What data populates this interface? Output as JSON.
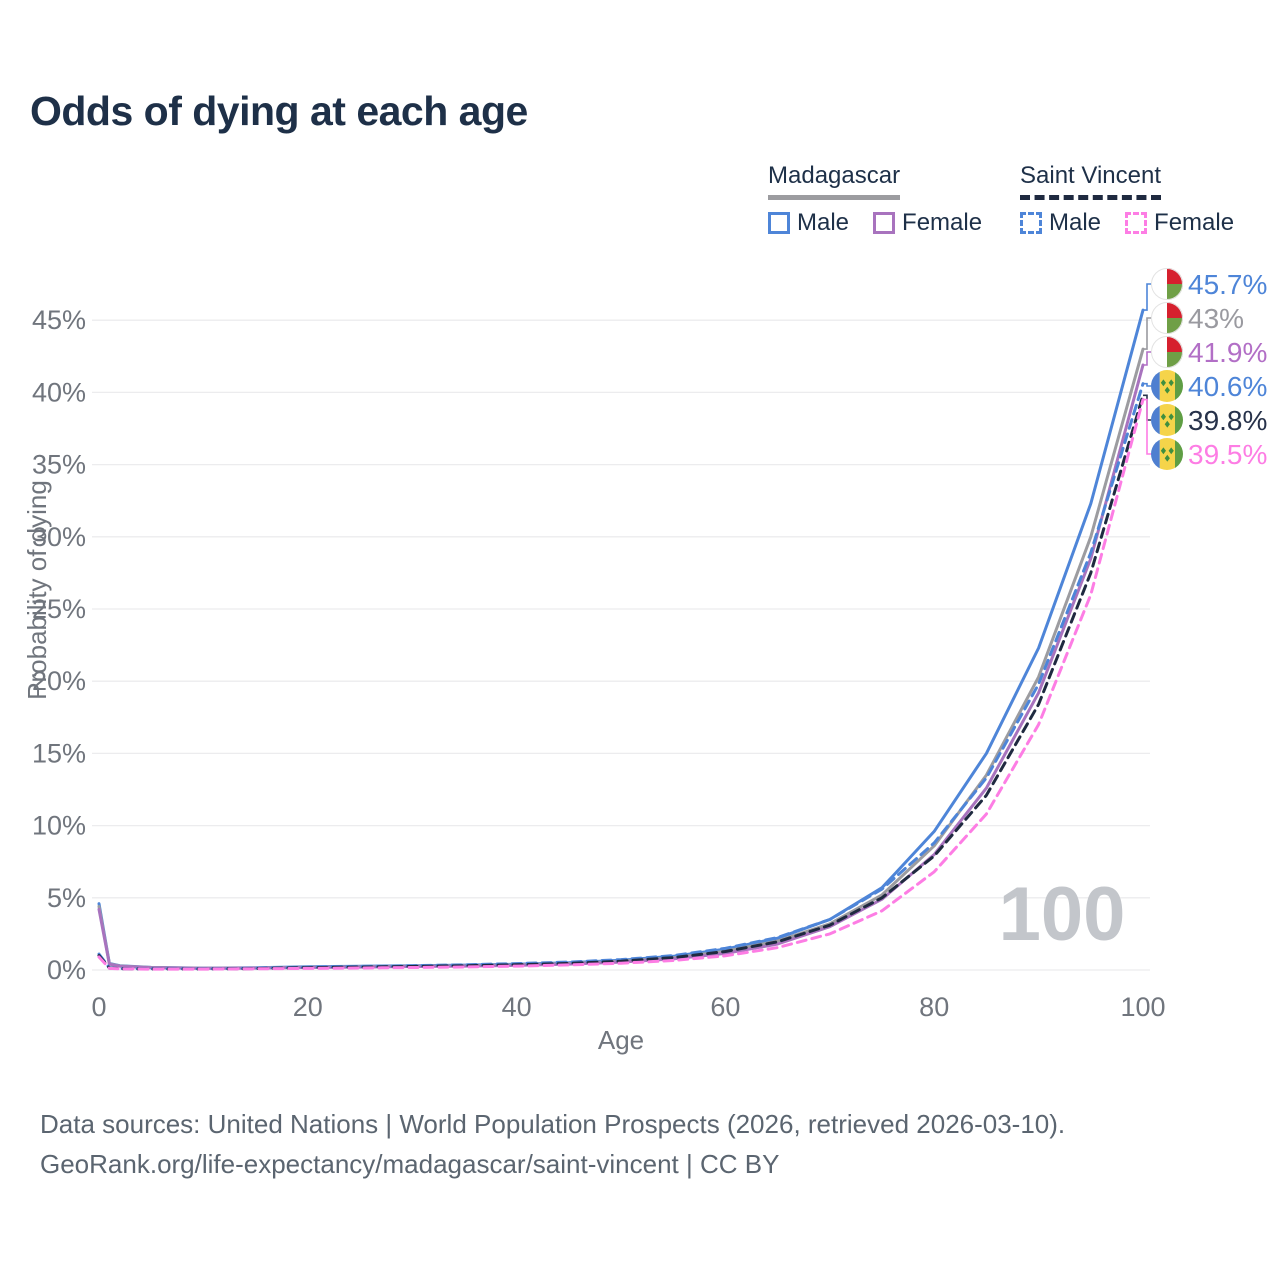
{
  "title": "Odds of dying at each age",
  "legend": {
    "groups": [
      {
        "id": "madagascar",
        "label": "Madagascar",
        "header_line_style": "solid",
        "header_line_color": "#9c9ca0",
        "items": [
          {
            "label": "Male",
            "color": "#4e85d8",
            "dashed": false
          },
          {
            "label": "Female",
            "color": "#a873be",
            "dashed": false
          }
        ]
      },
      {
        "id": "saint-vincent",
        "label": "Saint Vincent",
        "header_line_style": "dashed",
        "header_line_color": "#1f2a40",
        "items": [
          {
            "label": "Male",
            "color": "#4e85d8",
            "dashed": true
          },
          {
            "label": "Female",
            "color": "#fd7de4",
            "dashed": true
          }
        ]
      }
    ]
  },
  "chart_data": {
    "type": "line",
    "title": "Odds of dying at each age",
    "xlabel": "Age",
    "ylabel": "Probability of dying",
    "xlim": [
      0,
      100
    ],
    "ylim": [
      0,
      47
    ],
    "grid": "horizontal",
    "grid_color": "#ececee",
    "axis_text_color": "#70757d",
    "x_ticks": [
      {
        "v": 0,
        "label": "0"
      },
      {
        "v": 20,
        "label": "20"
      },
      {
        "v": 40,
        "label": "40"
      },
      {
        "v": 60,
        "label": "60"
      },
      {
        "v": 80,
        "label": "80"
      },
      {
        "v": 100,
        "label": "100"
      }
    ],
    "y_ticks": [
      {
        "v": 0,
        "label": "0%"
      },
      {
        "v": 5,
        "label": "5%"
      },
      {
        "v": 10,
        "label": "10%"
      },
      {
        "v": 15,
        "label": "15%"
      },
      {
        "v": 20,
        "label": "20%"
      },
      {
        "v": 25,
        "label": "25%"
      },
      {
        "v": 30,
        "label": "30%"
      },
      {
        "v": 35,
        "label": "35%"
      },
      {
        "v": 40,
        "label": "40%"
      },
      {
        "v": 45,
        "label": "45%"
      }
    ],
    "x": [
      0,
      1,
      2,
      5,
      10,
      15,
      20,
      25,
      30,
      35,
      40,
      45,
      50,
      55,
      60,
      65,
      70,
      75,
      80,
      85,
      90,
      95,
      100
    ],
    "series": [
      {
        "name": "Madagascar Male",
        "country": "madagascar",
        "sex": "male",
        "color": "#4e85d8",
        "label_color": "#4e85d8",
        "dashed": false,
        "end_label": "45.7%",
        "values": [
          4.6,
          0.45,
          0.3,
          0.18,
          0.13,
          0.16,
          0.22,
          0.26,
          0.3,
          0.34,
          0.4,
          0.5,
          0.68,
          0.95,
          1.45,
          2.2,
          3.5,
          5.7,
          9.6,
          15.0,
          22.3,
          32.3,
          45.7
        ]
      },
      {
        "name": "Madagascar Both sexes",
        "country": "madagascar",
        "sex": "both",
        "color": "#9c9ca0",
        "label_color": "#9a9aa0",
        "dashed": false,
        "end_label": "43%",
        "values": [
          4.4,
          0.42,
          0.28,
          0.17,
          0.12,
          0.14,
          0.19,
          0.23,
          0.27,
          0.3,
          0.36,
          0.45,
          0.61,
          0.85,
          1.3,
          2.0,
          3.2,
          5.2,
          8.6,
          13.5,
          20.3,
          30.0,
          43.0
        ]
      },
      {
        "name": "Madagascar Female",
        "country": "madagascar",
        "sex": "female",
        "color": "#a873be",
        "label_color": "#b26fc6",
        "dashed": false,
        "end_label": "41.9%",
        "values": [
          4.2,
          0.4,
          0.26,
          0.16,
          0.11,
          0.13,
          0.17,
          0.2,
          0.24,
          0.27,
          0.32,
          0.41,
          0.55,
          0.77,
          1.15,
          1.8,
          3.0,
          4.9,
          8.0,
          12.6,
          19.2,
          28.5,
          41.9
        ]
      },
      {
        "name": "Saint Vincent Male",
        "country": "saint-vincent",
        "sex": "male",
        "color": "#4e85d8",
        "label_color": "#4e85d8",
        "dashed": true,
        "end_label": "40.6%",
        "values": [
          1.1,
          0.15,
          0.1,
          0.08,
          0.08,
          0.12,
          0.2,
          0.25,
          0.3,
          0.36,
          0.44,
          0.55,
          0.72,
          1.0,
          1.5,
          2.25,
          3.5,
          5.6,
          8.8,
          13.3,
          19.8,
          28.9,
          40.6
        ]
      },
      {
        "name": "Saint Vincent Both sexes",
        "country": "saint-vincent",
        "sex": "both",
        "color": "#1f2a40",
        "label_color": "#27324a",
        "dashed": true,
        "end_label": "39.8%",
        "values": [
          1.0,
          0.13,
          0.09,
          0.07,
          0.07,
          0.1,
          0.16,
          0.2,
          0.24,
          0.29,
          0.36,
          0.46,
          0.61,
          0.86,
          1.28,
          1.95,
          3.1,
          5.0,
          7.9,
          12.1,
          18.4,
          27.5,
          39.8
        ]
      },
      {
        "name": "Saint Vincent Female",
        "country": "saint-vincent",
        "sex": "female",
        "color": "#fd7de4",
        "label_color": "#fd7de4",
        "dashed": true,
        "end_label": "39.5%",
        "values": [
          0.9,
          0.11,
          0.08,
          0.06,
          0.06,
          0.08,
          0.11,
          0.14,
          0.17,
          0.21,
          0.27,
          0.35,
          0.47,
          0.66,
          0.98,
          1.55,
          2.5,
          4.1,
          6.8,
          10.8,
          17.0,
          26.0,
          39.5
        ]
      }
    ],
    "annotation": {
      "text": "100",
      "color": "#c3c6cb"
    },
    "legend_position": "top-right",
    "flag_colors": {
      "madagascar": {
        "white": "#ffffff",
        "red": "#d6202e",
        "green": "#6f9f46",
        "ring": "#e3e3e3"
      },
      "saint_vincent": {
        "blue": "#4e7fd0",
        "yellow": "#f5d44a",
        "green": "#5f9e44",
        "diamond": "#3f8f3f"
      }
    }
  },
  "footer": {
    "lines": [
      "Data sources: United Nations | World Population Prospects (2026, retrieved 2026-03-10).",
      "GeoRank.org/life-expectancy/madagascar/saint-vincent | CC BY"
    ]
  }
}
